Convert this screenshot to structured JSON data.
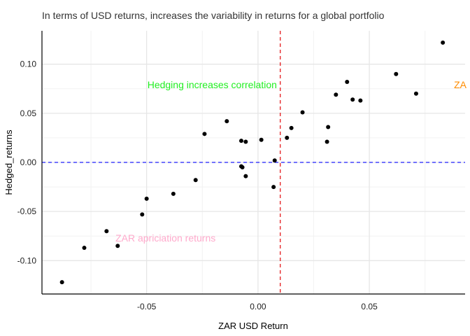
{
  "chart_data": {
    "type": "scatter",
    "title": "In terms of USD returns, increases the variability in returns for a global portfolio",
    "xlabel": "ZAR USD Return",
    "ylabel": "Hedged_returns",
    "xlim": [
      -0.097,
      0.093
    ],
    "ylim": [
      -0.134,
      0.134
    ],
    "xticks": [
      -0.05,
      0.0,
      0.05
    ],
    "xtick_labels": [
      "-0.05",
      "0.00",
      "0.05"
    ],
    "yticks": [
      -0.1,
      -0.05,
      0.0,
      0.05,
      0.1
    ],
    "ytick_labels": [
      "-0.10",
      "-0.05",
      "0.00",
      "0.05",
      "0.10"
    ],
    "grid": true,
    "point_color": "#000000",
    "reference_lines": [
      {
        "orientation": "vertical",
        "value": 0.01,
        "color": "#e41a1c",
        "style": "dashed"
      },
      {
        "orientation": "horizontal",
        "value": 0.0,
        "color": "#2222ff",
        "style": "dashed"
      }
    ],
    "annotations": [
      {
        "text": "Hedging increases correlation",
        "x": 0.0085,
        "y": 0.079,
        "color": "#22ee22",
        "anchor": "end"
      },
      {
        "text": "ZAR apriciation returns",
        "x": -0.064,
        "y": -0.077,
        "color": "#ffaacc",
        "anchor": "start"
      },
      {
        "text": "ZA",
        "x": 0.088,
        "y": 0.079,
        "color": "#ff8c00",
        "anchor": "start"
      }
    ],
    "points": [
      {
        "x": -0.088,
        "y": -0.122
      },
      {
        "x": -0.078,
        "y": -0.087
      },
      {
        "x": -0.068,
        "y": -0.07
      },
      {
        "x": -0.063,
        "y": -0.085
      },
      {
        "x": -0.052,
        "y": -0.053
      },
      {
        "x": -0.05,
        "y": -0.037
      },
      {
        "x": -0.038,
        "y": -0.032
      },
      {
        "x": -0.028,
        "y": -0.018
      },
      {
        "x": -0.024,
        "y": 0.029
      },
      {
        "x": -0.014,
        "y": 0.042
      },
      {
        "x": -0.0075,
        "y": 0.022
      },
      {
        "x": -0.0055,
        "y": 0.021
      },
      {
        "x": -0.0075,
        "y": -0.004
      },
      {
        "x": -0.007,
        "y": -0.005
      },
      {
        "x": -0.0055,
        "y": -0.014
      },
      {
        "x": 0.0015,
        "y": 0.023
      },
      {
        "x": 0.007,
        "y": -0.025
      },
      {
        "x": 0.0075,
        "y": 0.002
      },
      {
        "x": 0.013,
        "y": 0.025
      },
      {
        "x": 0.015,
        "y": 0.035
      },
      {
        "x": 0.02,
        "y": 0.051
      },
      {
        "x": 0.031,
        "y": 0.021
      },
      {
        "x": 0.0315,
        "y": 0.036
      },
      {
        "x": 0.035,
        "y": 0.069
      },
      {
        "x": 0.04,
        "y": 0.082
      },
      {
        "x": 0.0425,
        "y": 0.064
      },
      {
        "x": 0.046,
        "y": 0.063
      },
      {
        "x": 0.062,
        "y": 0.09
      },
      {
        "x": 0.071,
        "y": 0.07
      },
      {
        "x": 0.083,
        "y": 0.122
      }
    ]
  }
}
